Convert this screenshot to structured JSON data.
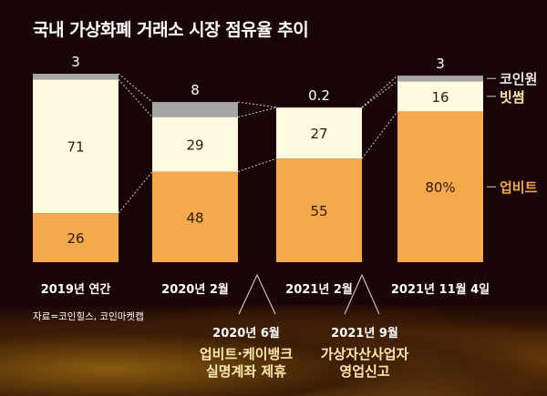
{
  "chart_data": {
    "type": "bar",
    "stacked": true,
    "title": "국내 가상화폐 거래소 시장 점유율 추이",
    "categories": [
      "2019년 연간",
      "2020년 2월",
      "2021년 2월",
      "2021년 11월 4일"
    ],
    "series": [
      {
        "name": "업비트",
        "color": "#f5a94a",
        "values": [
          26,
          48,
          55,
          80
        ],
        "labels": [
          "26",
          "48",
          "55",
          "80%"
        ]
      },
      {
        "name": "빗썸",
        "color": "#fffbe0",
        "values": [
          71,
          29,
          27,
          16
        ],
        "labels": [
          "71",
          "29",
          "27",
          "16"
        ]
      },
      {
        "name": "코인원",
        "color": "#a6a6a6",
        "values": [
          3,
          8,
          0.2,
          3
        ],
        "labels": [
          "3",
          "8",
          "0.2",
          "3"
        ]
      }
    ],
    "source": "자료=코인힐스, 코인마켓캡",
    "events": [
      {
        "date": "2020년 6월",
        "line1": "업비트·케이뱅크",
        "line2": "실명계좌 제휴"
      },
      {
        "date": "2021년 9월",
        "line1": "가상자산사업자",
        "line2": "영업신고"
      }
    ]
  }
}
